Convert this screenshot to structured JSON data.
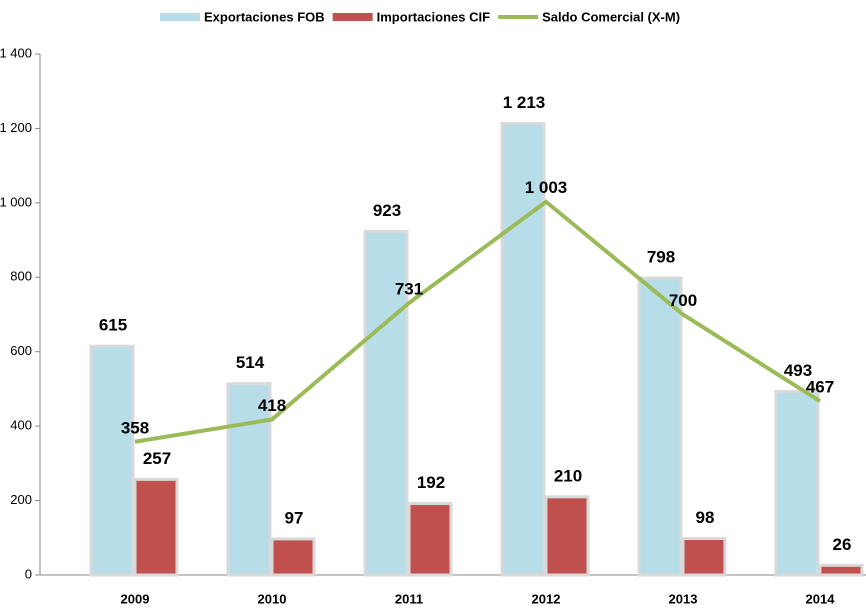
{
  "chart_data": {
    "type": "bar-line",
    "categories": [
      "2009",
      "2010",
      "2011",
      "2012",
      "2013",
      "2014"
    ],
    "series": [
      {
        "name": "Exportaciones FOB",
        "type": "bar",
        "color": "#b7dde8",
        "values": [
          615,
          514,
          923,
          1213,
          798,
          493
        ],
        "value_labels": [
          "615",
          "514",
          "923",
          "1 213",
          "798",
          "493"
        ]
      },
      {
        "name": "Importaciones CIF",
        "type": "bar",
        "color": "#c0504d",
        "values": [
          257,
          97,
          192,
          210,
          98,
          26
        ]
      },
      {
        "name": "Saldo Comercial (X-M)",
        "type": "line",
        "color": "#9bbb59",
        "values": [
          358,
          418,
          731,
          1003,
          700,
          467
        ],
        "value_labels": [
          "358",
          "418",
          "731",
          "1 003",
          "700",
          "467"
        ]
      }
    ],
    "ylim": [
      0,
      1400
    ],
    "yticks": [
      0,
      200,
      400,
      600,
      800,
      {
        "value": 1000,
        "label": "1 000"
      },
      {
        "value": 1200,
        "label": "1 200"
      },
      {
        "value": 1400,
        "label": "1 400"
      }
    ],
    "legend": "top"
  }
}
